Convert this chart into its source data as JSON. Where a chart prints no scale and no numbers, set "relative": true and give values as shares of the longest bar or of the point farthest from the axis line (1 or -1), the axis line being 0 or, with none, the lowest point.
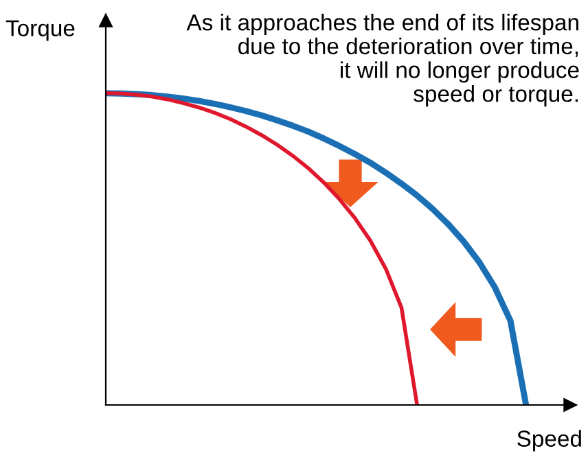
{
  "chart_data": {
    "type": "line",
    "relative": true,
    "xlabel": "Speed",
    "ylabel": "Torque",
    "annotations": [
      "As it approaches the end of its lifespan\ndue to the deterioration over time,\nit will no longer produce\nspeed or torque."
    ],
    "legend": false,
    "marker": "none",
    "line_style": "solid",
    "categories": [
      null,
      null,
      null,
      null,
      null,
      null,
      null,
      null,
      null,
      null,
      null,
      null,
      null,
      null,
      null,
      null,
      null,
      null,
      null,
      null,
      null,
      null,
      null,
      null,
      null,
      null,
      null,
      null
    ],
    "series": [
      {
        "color": "#1a6fb5",
        "values": [
          1,
          0.999,
          0.997,
          0.994,
          0.989,
          0.983,
          0.975,
          0.966,
          0.955,
          0.943,
          0.929,
          0.913,
          0.896,
          0.877,
          0.855,
          0.831,
          0.805,
          0.777,
          0.745,
          0.71,
          0.672,
          0.629,
          0.58,
          0.524,
          0.458,
          0.377,
          0.27,
          0
        ]
      },
      {
        "color": "#e0182d",
        "values": [
          1,
          0.999,
          0.995,
          0.989,
          0.98,
          0.968,
          0.954,
          0.937,
          0.917,
          0.893,
          0.866,
          0.835,
          0.8,
          0.76,
          0.714,
          0.661,
          0.6,
          0.527,
          0.436,
          0.312,
          0,
          null,
          null,
          null,
          null,
          null,
          null,
          null
        ]
      }
    ]
  }
}
